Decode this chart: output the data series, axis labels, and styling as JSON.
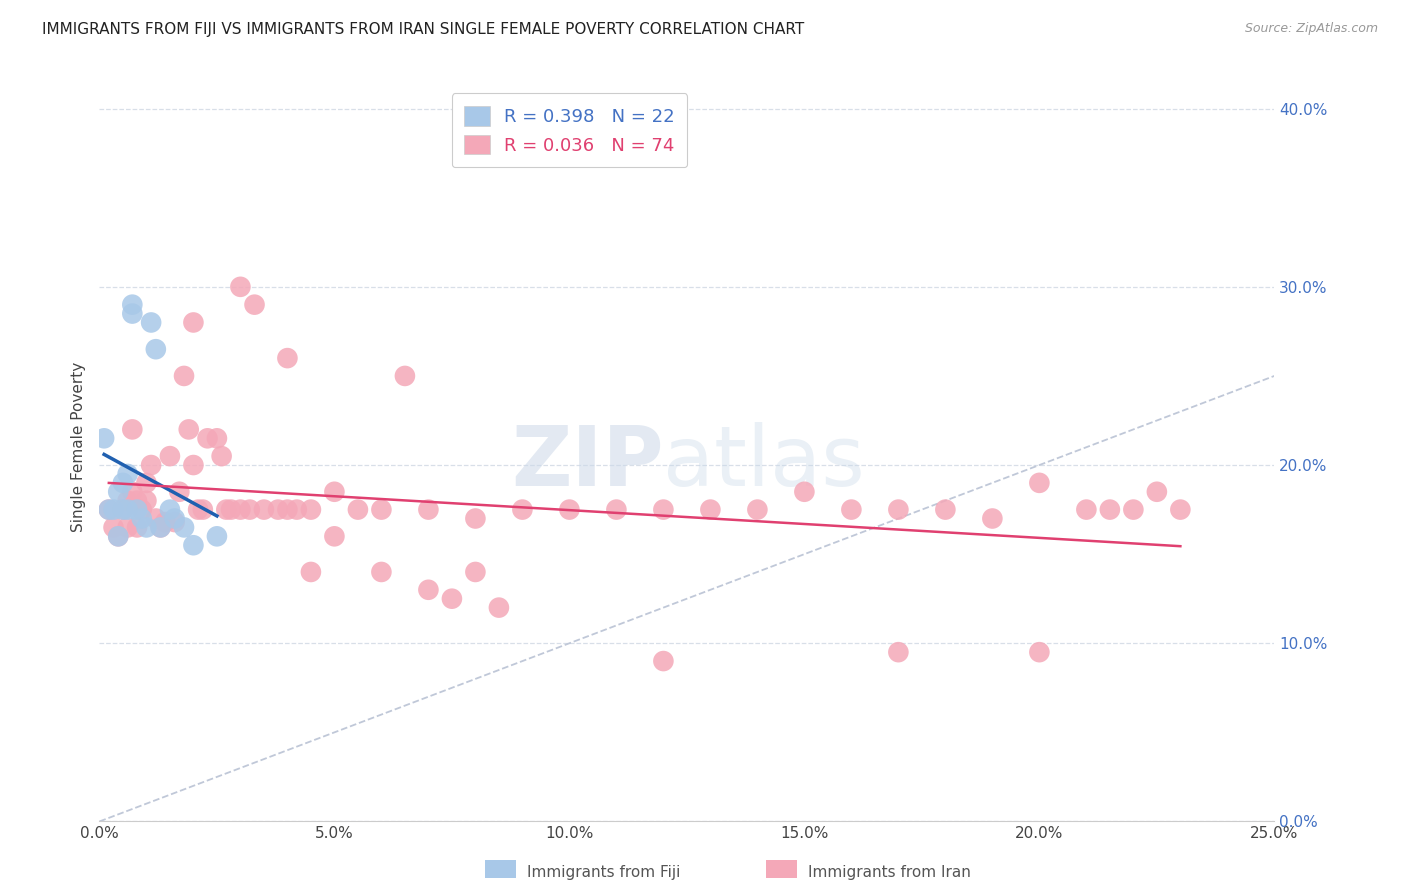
{
  "title": "IMMIGRANTS FROM FIJI VS IMMIGRANTS FROM IRAN SINGLE FEMALE POVERTY CORRELATION CHART",
  "source": "Source: ZipAtlas.com",
  "ylabel": "Single Female Poverty",
  "xlim": [
    0.0,
    0.25
  ],
  "ylim": [
    0.0,
    0.42
  ],
  "legend_fiji_R": "R = 0.398",
  "legend_fiji_N": "N = 22",
  "legend_iran_R": "R = 0.036",
  "legend_iran_N": "N = 74",
  "fiji_color": "#a8c8e8",
  "iran_color": "#f4a8b8",
  "fiji_line_color": "#2060b0",
  "iran_line_color": "#e04070",
  "diagonal_color": "#c0c8d8",
  "background_color": "#ffffff",
  "grid_color": "#d8dfe8",
  "fiji_x": [
    0.001,
    0.002,
    0.003,
    0.004,
    0.004,
    0.005,
    0.005,
    0.006,
    0.006,
    0.007,
    0.007,
    0.008,
    0.009,
    0.01,
    0.011,
    0.012,
    0.013,
    0.015,
    0.016,
    0.018,
    0.02,
    0.025
  ],
  "fiji_y": [
    0.215,
    0.175,
    0.175,
    0.16,
    0.185,
    0.175,
    0.19,
    0.175,
    0.195,
    0.285,
    0.29,
    0.175,
    0.17,
    0.165,
    0.28,
    0.265,
    0.165,
    0.175,
    0.17,
    0.165,
    0.155,
    0.16
  ],
  "iran_x": [
    0.002,
    0.003,
    0.004,
    0.005,
    0.006,
    0.006,
    0.007,
    0.007,
    0.008,
    0.008,
    0.009,
    0.01,
    0.01,
    0.011,
    0.012,
    0.013,
    0.014,
    0.015,
    0.016,
    0.017,
    0.018,
    0.019,
    0.02,
    0.021,
    0.022,
    0.023,
    0.025,
    0.026,
    0.027,
    0.028,
    0.03,
    0.032,
    0.033,
    0.035,
    0.038,
    0.04,
    0.042,
    0.045,
    0.05,
    0.055,
    0.06,
    0.065,
    0.07,
    0.08,
    0.09,
    0.1,
    0.11,
    0.12,
    0.13,
    0.14,
    0.15,
    0.16,
    0.17,
    0.18,
    0.19,
    0.2,
    0.21,
    0.215,
    0.22,
    0.225,
    0.23,
    0.02,
    0.03,
    0.04,
    0.045,
    0.05,
    0.06,
    0.07,
    0.075,
    0.08,
    0.085,
    0.12,
    0.17,
    0.2
  ],
  "iran_y": [
    0.175,
    0.165,
    0.16,
    0.175,
    0.165,
    0.18,
    0.22,
    0.185,
    0.18,
    0.165,
    0.175,
    0.18,
    0.19,
    0.2,
    0.17,
    0.165,
    0.168,
    0.205,
    0.168,
    0.185,
    0.25,
    0.22,
    0.2,
    0.175,
    0.175,
    0.215,
    0.215,
    0.205,
    0.175,
    0.175,
    0.175,
    0.175,
    0.29,
    0.175,
    0.175,
    0.175,
    0.175,
    0.175,
    0.185,
    0.175,
    0.175,
    0.25,
    0.175,
    0.17,
    0.175,
    0.175,
    0.175,
    0.175,
    0.175,
    0.175,
    0.185,
    0.175,
    0.175,
    0.175,
    0.17,
    0.19,
    0.175,
    0.175,
    0.175,
    0.185,
    0.175,
    0.28,
    0.3,
    0.26,
    0.14,
    0.16,
    0.14,
    0.13,
    0.125,
    0.14,
    0.12,
    0.09,
    0.095,
    0.095
  ]
}
